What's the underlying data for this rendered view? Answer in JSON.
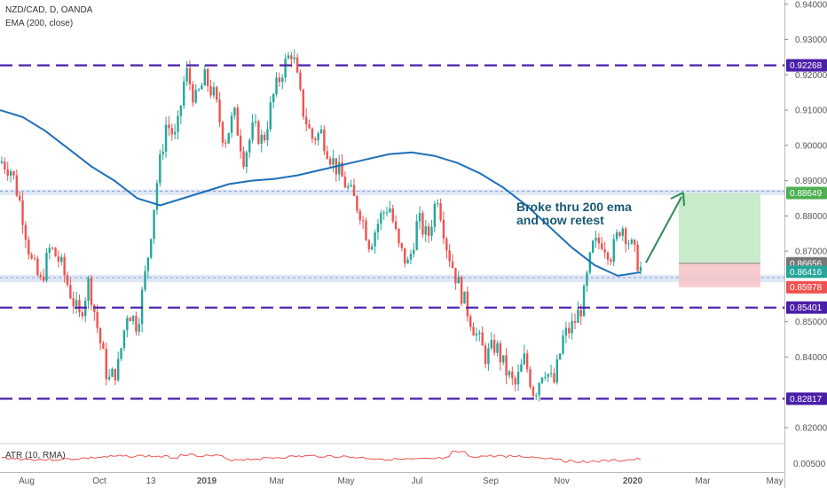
{
  "header": {
    "symbol": "NZD/CAD, D, OANDA",
    "indicator": "EMA (200, close)"
  },
  "atr_panel": {
    "label": "ATR (10, RMA)",
    "tick": "0.00500"
  },
  "annotation": {
    "line1": "Broke thru 200 ema",
    "line2": "and now retest"
  },
  "colors": {
    "up": "#26a69a",
    "down": "#ef5350",
    "ema": "#1e6fb8",
    "level_dashed": "#4a1fa8",
    "zone": "#b9c9ec",
    "target": "#bfe6c2",
    "stop": "#f6c3c6",
    "arrow": "#2e8b57",
    "atr": "#ef5350"
  },
  "chart_data": {
    "type": "candlestick",
    "x_ticks": [
      "Aug",
      "Oct",
      "13",
      "2019",
      "Mar",
      "May",
      "Jul",
      "Sep",
      "Nov",
      "2020",
      "Mar",
      "May"
    ],
    "y_ticks": [
      "0.94000",
      "0.93000",
      "0.92000",
      "0.91000",
      "0.90000",
      "0.89000",
      "0.88000",
      "0.87000",
      "0.85000",
      "0.84000",
      "0.82000"
    ],
    "ylim": [
      0.8162,
      0.9412
    ],
    "horizontal_levels": [
      {
        "value": 0.92268,
        "label": "0.92268",
        "style": "dashed"
      },
      {
        "value": 0.85401,
        "label": "0.85401",
        "style": "dashed"
      },
      {
        "value": 0.82817,
        "label": "0.82817",
        "style": "dashed"
      },
      {
        "value": 0.887,
        "style": "zone",
        "low": 0.8859,
        "high": 0.8875
      },
      {
        "value": 0.8625,
        "style": "zone",
        "low": 0.8612,
        "high": 0.8633
      }
    ],
    "price_labels": [
      {
        "value": 0.88649,
        "label": "0.88649",
        "color": "#4caf50"
      },
      {
        "value": 0.86656,
        "label": "0.86656",
        "color": "#777777"
      },
      {
        "value": 0.86416,
        "label": "0.86416",
        "color": "#26a69a"
      },
      {
        "value": 0.85978,
        "label": "0.85978",
        "color": "#ef5350"
      }
    ],
    "price_path": [
      [
        0.895,
        0.896
      ],
      [
        0.892,
        0.894
      ],
      [
        0.88,
        0.885
      ],
      [
        0.865,
        0.87
      ],
      [
        0.86,
        0.862
      ],
      [
        0.87,
        0.872
      ],
      [
        0.866,
        0.868
      ],
      [
        0.858,
        0.86
      ],
      [
        0.85,
        0.852
      ],
      [
        0.86,
        0.863
      ],
      [
        0.845,
        0.848
      ],
      [
        0.832,
        0.834
      ],
      [
        0.836,
        0.838
      ],
      [
        0.852,
        0.855
      ],
      [
        0.848,
        0.85
      ],
      [
        0.865,
        0.868
      ],
      [
        0.888,
        0.89
      ],
      [
        0.905,
        0.908
      ],
      [
        0.9,
        0.903
      ],
      [
        0.92,
        0.923
      ],
      [
        0.91,
        0.915
      ],
      [
        0.918,
        0.92
      ],
      [
        0.912,
        0.915
      ],
      [
        0.9,
        0.902
      ],
      [
        0.908,
        0.91
      ],
      [
        0.895,
        0.898
      ],
      [
        0.904,
        0.906
      ],
      [
        0.9,
        0.902
      ],
      [
        0.912,
        0.915
      ],
      [
        0.92,
        0.923
      ],
      [
        0.926,
        0.928
      ],
      [
        0.91,
        0.912
      ],
      [
        0.9,
        0.904
      ],
      [
        0.902,
        0.905
      ],
      [
        0.895,
        0.898
      ],
      [
        0.89,
        0.893
      ],
      [
        0.885,
        0.888
      ],
      [
        0.88,
        0.883
      ],
      [
        0.87,
        0.874
      ],
      [
        0.878,
        0.88
      ],
      [
        0.882,
        0.885
      ],
      [
        0.87,
        0.872
      ],
      [
        0.864,
        0.868
      ],
      [
        0.878,
        0.88
      ],
      [
        0.872,
        0.875
      ],
      [
        0.885,
        0.888
      ],
      [
        0.87,
        0.872
      ],
      [
        0.86,
        0.864
      ],
      [
        0.852,
        0.856
      ],
      [
        0.845,
        0.848
      ],
      [
        0.838,
        0.842
      ],
      [
        0.842,
        0.845
      ],
      [
        0.835,
        0.838
      ],
      [
        0.83,
        0.833
      ],
      [
        0.838,
        0.841
      ],
      [
        0.828,
        0.831
      ],
      [
        0.836,
        0.839
      ],
      [
        0.83,
        0.834
      ],
      [
        0.844,
        0.847
      ],
      [
        0.848,
        0.85
      ],
      [
        0.854,
        0.856
      ],
      [
        0.87,
        0.872
      ],
      [
        0.872,
        0.874
      ],
      [
        0.868,
        0.87
      ],
      [
        0.877,
        0.879
      ],
      [
        0.87,
        0.873
      ],
      [
        0.864,
        0.866
      ]
    ],
    "ema_path": [
      0.91,
      0.908,
      0.904,
      0.899,
      0.894,
      0.89,
      0.885,
      0.883,
      0.885,
      0.887,
      0.889,
      0.89,
      0.8905,
      0.8915,
      0.893,
      0.8945,
      0.896,
      0.8975,
      0.898,
      0.897,
      0.895,
      0.892,
      0.888,
      0.883,
      0.877,
      0.871,
      0.866,
      0.863,
      0.864
    ]
  }
}
